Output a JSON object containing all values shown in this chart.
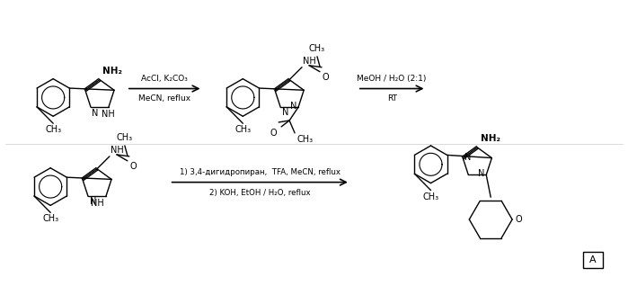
{
  "bg": "#ffffff",
  "arrow1_top": "AcCl, K₂CO₃",
  "arrow1_bot": "MeCN, reflux",
  "arrow2_top": "MeOH / H₂O (2:1)",
  "arrow2_bot": "RT",
  "arrow3_top": "1) 3,4-дигидропиран,  TFA, MeCN, reflux",
  "arrow3_bot": "2) KOH, EtOH / H₂O, reflux",
  "box_label": "A"
}
